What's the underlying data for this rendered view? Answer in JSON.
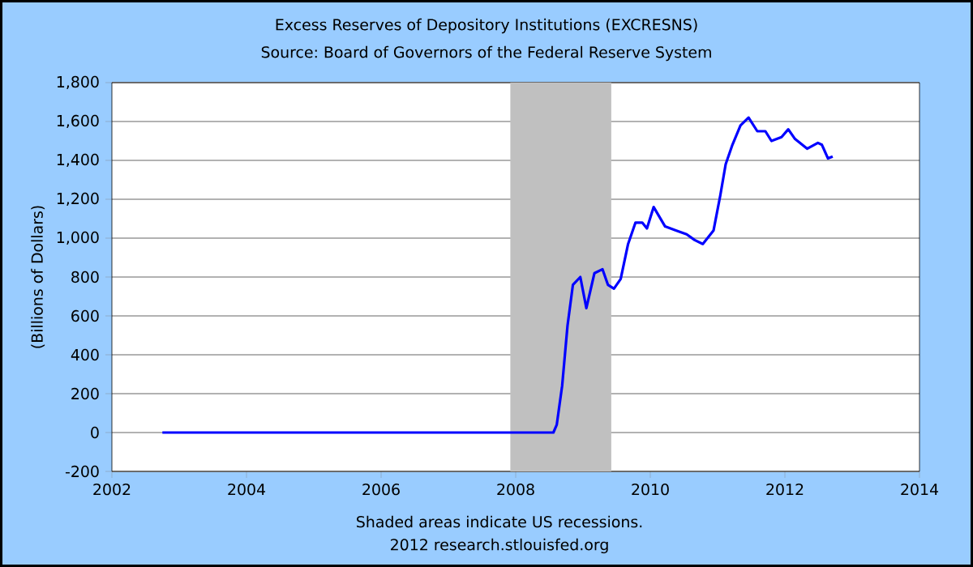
{
  "chart_data": {
    "type": "line",
    "title": "Excess Reserves of Depository Institutions (EXCRESNS)",
    "subtitle": "Source: Board of Governors of the Federal Reserve System",
    "ylabel": "(Billions of Dollars)",
    "annotations": [
      "Shaded areas indicate US recessions.",
      "2012 research.stlouisfed.org"
    ],
    "x": [
      2002.75,
      2008.56,
      2008.61,
      2008.69,
      2008.77,
      2008.85,
      2008.96,
      2009.05,
      2009.17,
      2009.29,
      2009.37,
      2009.46,
      2009.56,
      2009.67,
      2009.78,
      2009.88,
      2009.95,
      2010.05,
      2010.22,
      2010.38,
      2010.54,
      2010.66,
      2010.78,
      2010.94,
      2011.04,
      2011.12,
      2011.22,
      2011.34,
      2011.46,
      2011.59,
      2011.71,
      2011.8,
      2011.95,
      2012.05,
      2012.15,
      2012.33,
      2012.49,
      2012.55,
      2012.64,
      2012.71
    ],
    "series": [
      {
        "color": "#0000ff",
        "values": [
          0,
          0,
          40,
          240,
          550,
          760,
          800,
          640,
          820,
          840,
          760,
          740,
          790,
          970,
          1080,
          1080,
          1050,
          1160,
          1060,
          1040,
          1020,
          990,
          970,
          1040,
          1220,
          1380,
          1480,
          1580,
          1620,
          1550,
          1550,
          1500,
          1520,
          1560,
          1510,
          1460,
          1490,
          1480,
          1410,
          1420
        ]
      }
    ],
    "xlim": [
      2002,
      2014
    ],
    "xticks": [
      2002,
      2004,
      2006,
      2008,
      2010,
      2012,
      2014
    ],
    "ylim": [
      -200,
      1800
    ],
    "yticks": [
      -200,
      0,
      200,
      400,
      600,
      800,
      {
        "value": 1000,
        "label": "1,000"
      },
      {
        "value": 1200,
        "label": "1,200"
      },
      {
        "value": 1400,
        "label": "1,400"
      },
      {
        "value": 1600,
        "label": "1,600"
      },
      {
        "value": 1800,
        "label": "1,800"
      }
    ],
    "bands": [
      {
        "axis": "x",
        "from": 2007.92,
        "to": 2009.42,
        "color": "#c0c0c0"
      }
    ],
    "grid": "y",
    "line_style": "solid",
    "marker": "none"
  }
}
